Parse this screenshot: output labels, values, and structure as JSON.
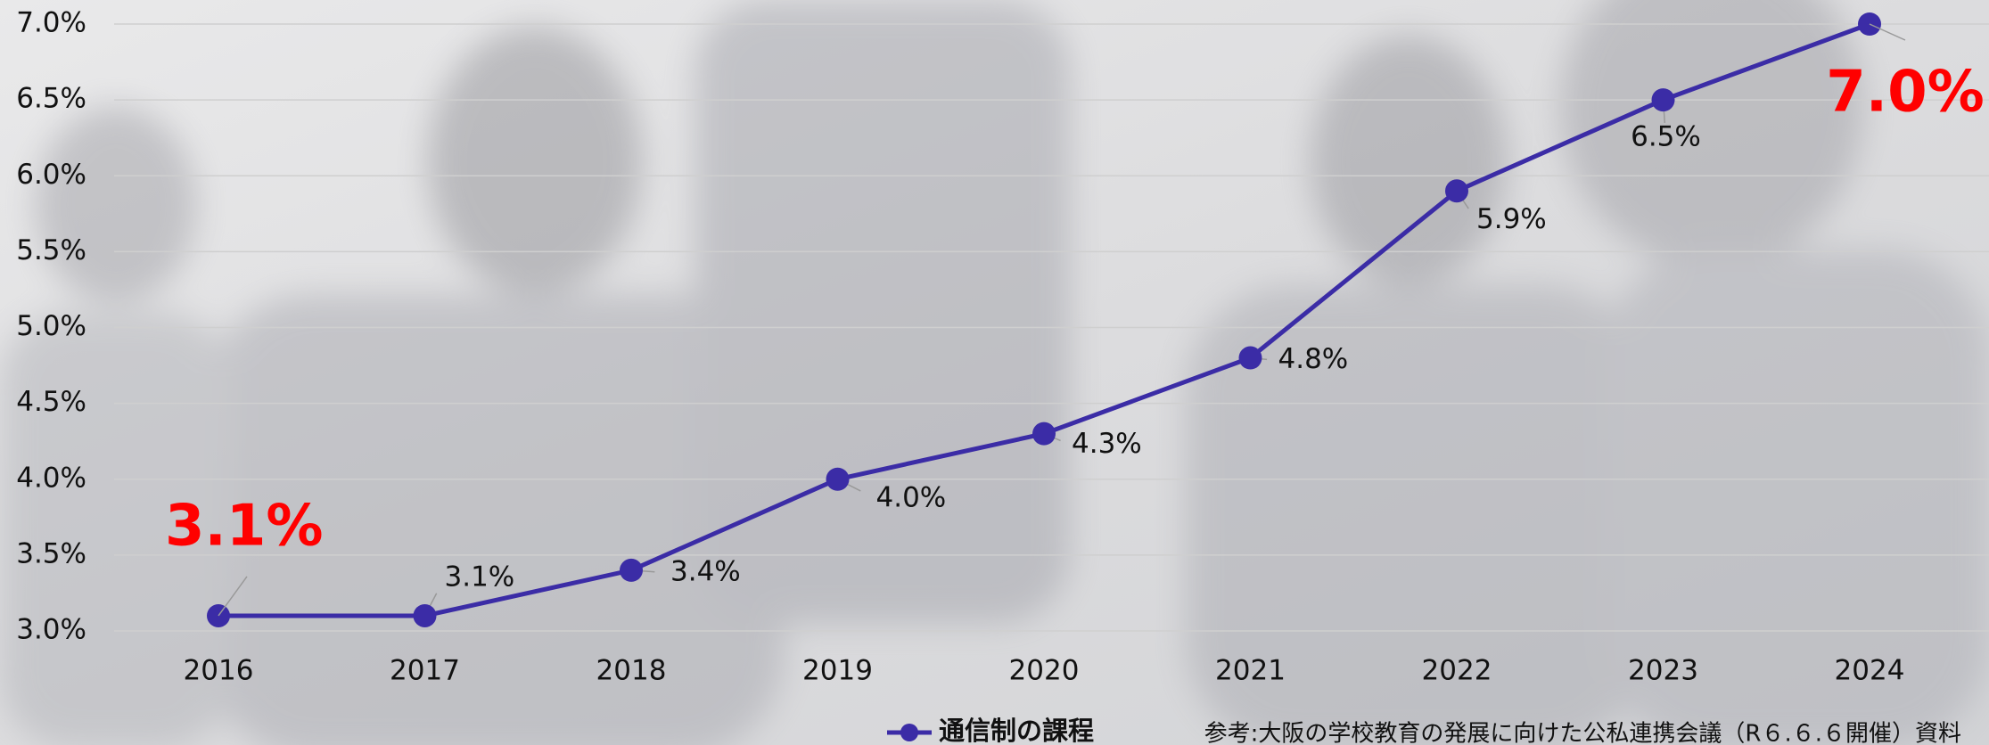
{
  "chart_data": {
    "type": "line",
    "categories": [
      "2016",
      "2017",
      "2018",
      "2019",
      "2020",
      "2021",
      "2022",
      "2023",
      "2024"
    ],
    "series": [
      {
        "name": "通信制の課程",
        "color": "#3b2ca6",
        "values": [
          3.1,
          3.1,
          3.4,
          4.0,
          4.3,
          4.8,
          5.9,
          6.5,
          7.0
        ],
        "value_labels": [
          "3.1%",
          "3.1%",
          "3.4%",
          "4.0%",
          "4.3%",
          "4.8%",
          "5.9%",
          "6.5%",
          "7.0%"
        ]
      }
    ],
    "ylim": [
      3.0,
      7.0
    ],
    "yticks": [
      {
        "value": 3.0,
        "label": "3.0%"
      },
      {
        "value": 3.5,
        "label": "3.5%"
      },
      {
        "value": 4.0,
        "label": "4.0%"
      },
      {
        "value": 4.5,
        "label": "4.5%"
      },
      {
        "value": 5.0,
        "label": "5.0%"
      },
      {
        "value": 5.5,
        "label": "5.5%"
      },
      {
        "value": 6.0,
        "label": "6.0%"
      },
      {
        "value": 6.5,
        "label": "6.5%"
      },
      {
        "value": 7.0,
        "label": "7.0%"
      }
    ],
    "grid": true,
    "highlight_color": "#ff0000",
    "source": "参考:大阪の学校教育の発展に向けた公私連携会議（R６.６.６開催）資料"
  }
}
